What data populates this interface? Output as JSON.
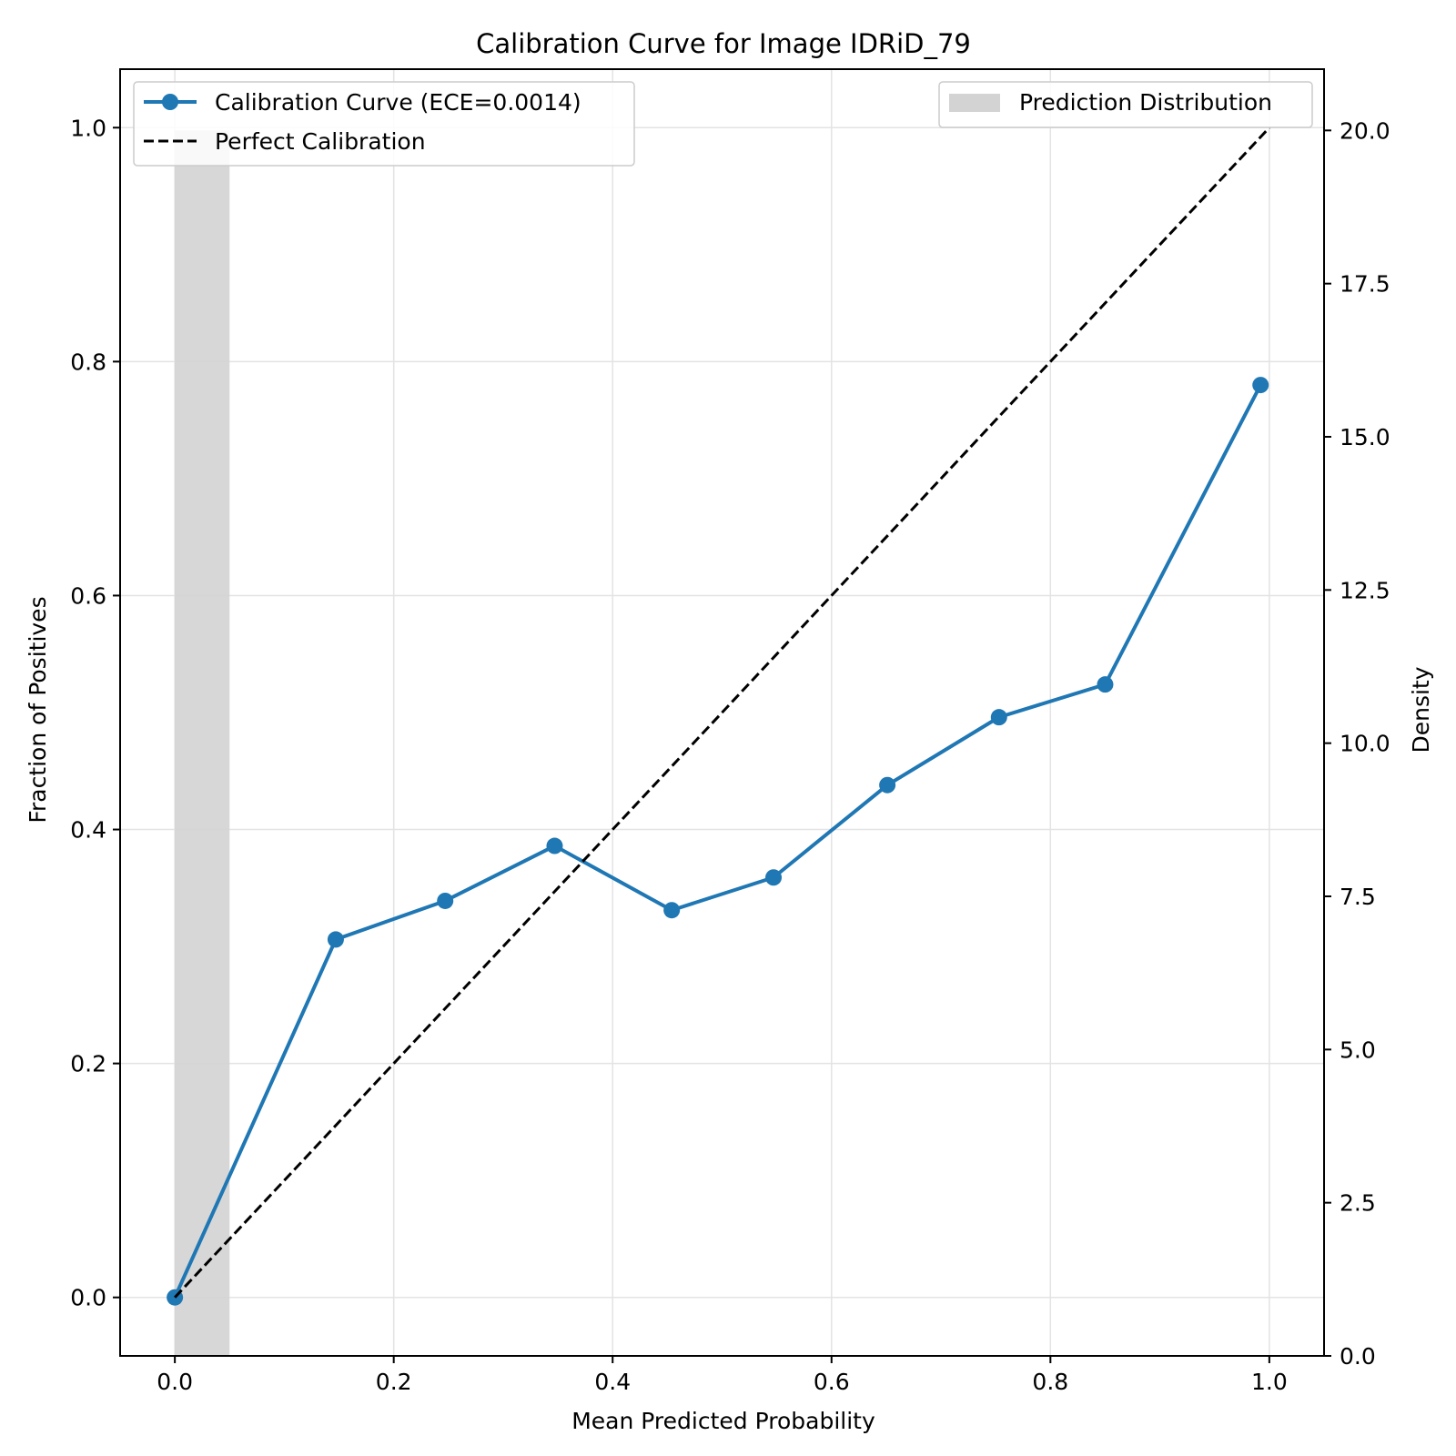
{
  "chart_data": {
    "type": "line",
    "title": "Calibration Curve for Image IDRiD_79",
    "xlabel": "Mean Predicted Probability",
    "ylabel": "Fraction of Positives",
    "y2label": "Density",
    "xlim": [
      -0.05,
      1.05
    ],
    "ylim": [
      -0.05,
      1.05
    ],
    "y2lim": [
      0.0,
      21.0
    ],
    "x_ticks": [
      "0.0",
      "0.2",
      "0.4",
      "0.6",
      "0.8",
      "1.0"
    ],
    "y_ticks": [
      "0.0",
      "0.2",
      "0.4",
      "0.6",
      "0.8",
      "1.0"
    ],
    "y2_ticks": [
      "0.0",
      "2.5",
      "5.0",
      "7.5",
      "10.0",
      "12.5",
      "15.0",
      "17.5",
      "20.0"
    ],
    "grid": true,
    "series": [
      {
        "name": "Calibration Curve (ECE=0.0014)",
        "style": "solid-marker",
        "color": "#1f77b4",
        "x": [
          0.0,
          0.147,
          0.247,
          0.347,
          0.454,
          0.547,
          0.651,
          0.753,
          0.85,
          0.992
        ],
        "y": [
          0.0,
          0.306,
          0.339,
          0.386,
          0.331,
          0.359,
          0.438,
          0.496,
          0.524,
          0.78
        ]
      },
      {
        "name": "Perfect Calibration",
        "style": "dashed",
        "color": "#000000",
        "x": [
          0.0,
          1.0
        ],
        "y": [
          0.0,
          1.0
        ]
      }
    ],
    "histogram": {
      "name": "Prediction Distribution",
      "color": "#d3d3d3",
      "axis": "right",
      "bins": [
        {
          "x0": 0.0,
          "x1": 0.05,
          "density": 20.0
        }
      ]
    },
    "legend_left_position": "upper-left",
    "legend_right_position": "upper-right"
  }
}
